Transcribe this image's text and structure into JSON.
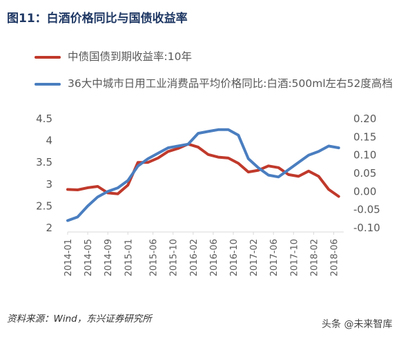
{
  "figure": {
    "title": "图11：白酒价格同比与国债收益率",
    "source": "资料来源：Wind，东兴证券研究所",
    "watermark": "头条 @未来智库"
  },
  "chart_data": {
    "type": "line",
    "x_tick_labels": [
      "2014-01",
      "2014-05",
      "2014-09",
      "2015-01",
      "2015-06",
      "2015-10",
      "2016-02",
      "2016-06",
      "2016-10",
      "2017-02",
      "2017-06",
      "2017-10",
      "2018-02",
      "2018-06"
    ],
    "y_left": {
      "min": 2,
      "max": 4.5,
      "ticks": [
        "2",
        "2.5",
        "3",
        "3.5",
        "4",
        "4.5"
      ],
      "tick_values": [
        2,
        2.5,
        3,
        3.5,
        4,
        4.5
      ]
    },
    "y_right": {
      "min": -0.1,
      "max": 0.2,
      "ticks": [
        "-0.10",
        "-0.05",
        "0.00",
        "0.05",
        "0.10",
        "0.15",
        "0.20"
      ],
      "tick_values": [
        -0.1,
        -0.05,
        0,
        0.05,
        0.1,
        0.15,
        0.2
      ]
    },
    "series": [
      {
        "name": "中债国债到期收益率:10年",
        "axis": "left",
        "color": "#c0392b",
        "x": [
          "2014-01",
          "2014-03",
          "2014-05",
          "2014-07",
          "2014-09",
          "2014-11",
          "2015-01",
          "2015-03",
          "2015-05",
          "2015-07",
          "2015-09",
          "2015-11",
          "2016-01",
          "2016-03",
          "2016-05",
          "2016-07",
          "2016-09",
          "2016-11",
          "2017-01",
          "2017-03",
          "2017-05",
          "2017-07",
          "2017-09",
          "2017-11",
          "2018-01",
          "2018-03",
          "2018-05",
          "2018-07"
        ],
        "values": [
          2.88,
          2.87,
          2.92,
          2.95,
          2.8,
          2.78,
          2.98,
          3.5,
          3.5,
          3.6,
          3.75,
          3.82,
          3.92,
          3.85,
          3.68,
          3.62,
          3.6,
          3.48,
          3.28,
          3.32,
          3.42,
          3.38,
          3.22,
          3.18,
          3.3,
          3.18,
          2.88,
          2.72
        ]
      },
      {
        "name": "36大中城市日用工业消费品平均价格同比:白酒:500ml左右52度高档",
        "axis": "right",
        "color": "#4a7ec0",
        "x": [
          "2014-01",
          "2014-03",
          "2014-05",
          "2014-07",
          "2014-09",
          "2014-11",
          "2015-01",
          "2015-03",
          "2015-05",
          "2015-07",
          "2015-09",
          "2015-11",
          "2016-01",
          "2016-03",
          "2016-05",
          "2016-07",
          "2016-09",
          "2016-11",
          "2017-01",
          "2017-03",
          "2017-05",
          "2017-07",
          "2017-09",
          "2017-11",
          "2018-01",
          "2018-03",
          "2018-05",
          "2018-07"
        ],
        "values": [
          -0.08,
          -0.07,
          -0.04,
          -0.015,
          0.0,
          0.01,
          0.03,
          0.07,
          0.09,
          0.105,
          0.12,
          0.125,
          0.13,
          0.16,
          0.165,
          0.17,
          0.17,
          0.155,
          0.09,
          0.065,
          0.045,
          0.04,
          0.06,
          0.08,
          0.1,
          0.11,
          0.125,
          0.12
        ]
      }
    ]
  }
}
